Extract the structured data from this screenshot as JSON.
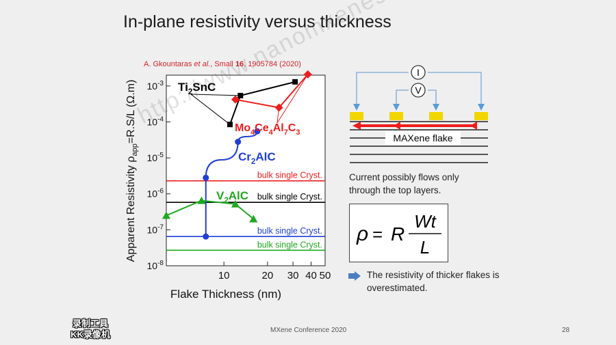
{
  "slide": {
    "title": "In-plane resistivity versus thickness",
    "citation": {
      "authors": "A. Gkountaras ",
      "etal": "et al.",
      "journal": ", Small ",
      "volume": "16",
      "rest": ", 1905784 (2020)"
    },
    "footer": "MXene Conference 2020",
    "page_number": "28",
    "watermark": "http://www.nanomxenes.com",
    "logo_line1": "录制工具",
    "logo_line2": "KK录像机"
  },
  "diagram": {
    "current_label": "I",
    "voltage_label": "V",
    "flake_label": "MAXene flake",
    "colors": {
      "contact": "#f2d600",
      "current_arrow": "#ee1c1c",
      "wire": "#5b9bd5"
    }
  },
  "caption": "Current possibly flows only through the top layers.",
  "formula": {
    "lhs": "ρ",
    "equals": "=",
    "R": "R",
    "numerator": "Wt",
    "denominator": "L"
  },
  "conclusion": "The resistivity of thicker flakes is overestimated.",
  "chart_data": {
    "type": "scatter",
    "xlabel": "Flake Thickness (nm)",
    "ylabel_parts": {
      "pre": "Apparent Resistivity ρ",
      "sub": "app",
      "post": "=R.S/L (Ω.m)"
    },
    "x_scale": "log",
    "y_scale": "log",
    "xlim": [
      4,
      50
    ],
    "ylim": [
      1e-08,
      0.002
    ],
    "x_ticks": [
      10,
      20,
      30,
      40,
      50
    ],
    "y_ticks": [
      {
        "value": 0.001,
        "mant": "10",
        "exp": "-3"
      },
      {
        "value": 0.0001,
        "mant": "10",
        "exp": "-4"
      },
      {
        "value": 1e-05,
        "mant": "10",
        "exp": "-5"
      },
      {
        "value": 1e-06,
        "mant": "10",
        "exp": "-6"
      },
      {
        "value": 1e-07,
        "mant": "10",
        "exp": "-7"
      },
      {
        "value": 1e-08,
        "mant": "10",
        "exp": "-8"
      }
    ],
    "series": [
      {
        "name_parts": [
          [
            "Ti",
            ""
          ],
          [
            "2",
            "sub"
          ],
          [
            "SnC",
            ""
          ]
        ],
        "color": "#000000",
        "marker": "square",
        "points": [
          [
            11,
            8.5e-05
          ],
          [
            13,
            0.00054
          ],
          [
            31,
            0.0013
          ]
        ]
      },
      {
        "name_parts": [
          [
            "Mo",
            ""
          ],
          [
            "4",
            "sub"
          ],
          [
            "Ce",
            ""
          ],
          [
            "4",
            "sub"
          ],
          [
            "Al",
            ""
          ],
          [
            "7",
            "sub"
          ],
          [
            "C",
            ""
          ],
          [
            "3",
            "sub"
          ]
        ],
        "color": "#ee1c1c",
        "marker": "diamond",
        "points": [
          [
            12,
            0.00042
          ],
          [
            24,
            0.00025
          ],
          [
            38,
            0.0021
          ]
        ]
      },
      {
        "name_parts": [
          [
            "Cr",
            ""
          ],
          [
            "2",
            "sub"
          ],
          [
            "AlC",
            ""
          ]
        ],
        "color": "#1f3fd6",
        "marker": "circle",
        "points": [
          [
            7.5,
            6.5e-08
          ],
          [
            7.5,
            2.8e-06
          ],
          [
            12.5,
            2.8e-05
          ],
          [
            17,
            5.5e-05
          ]
        ]
      },
      {
        "name_parts": [
          [
            "V",
            ""
          ],
          [
            "2",
            "sub"
          ],
          [
            "AlC",
            ""
          ]
        ],
        "color": "#1ea81e",
        "marker": "triangle",
        "points": [
          [
            4,
            2.5e-07
          ],
          [
            7,
            6.5e-07
          ],
          [
            12,
            5.2e-07
          ],
          [
            16,
            2e-07
          ]
        ]
      }
    ],
    "reference_lines": [
      {
        "label": "bulk single Cryst.",
        "value": 2.3e-06,
        "color": "#ee1c1c"
      },
      {
        "label": "bulk single Cryst.",
        "value": 5.8e-07,
        "color": "#000000"
      },
      {
        "label": "bulk single Cryst.",
        "value": 6.5e-08,
        "color": "#1f3fd6"
      },
      {
        "label": "bulk single Cryst.",
        "value": 2.7e-08,
        "color": "#1ea81e"
      }
    ]
  }
}
